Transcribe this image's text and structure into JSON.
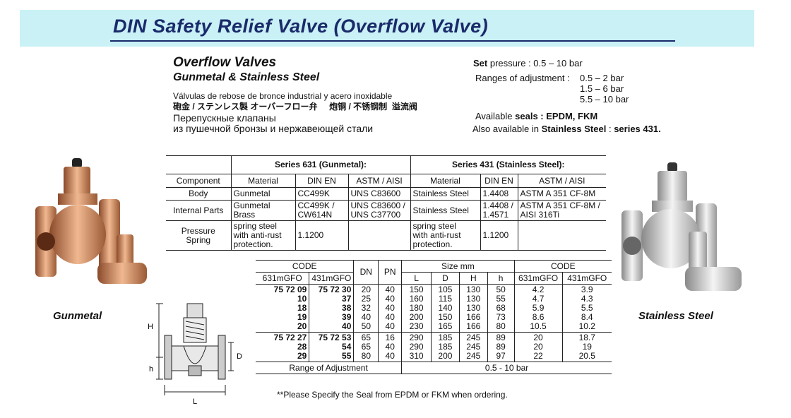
{
  "banner": {
    "title": "DIN  Safety Relief Valve  (Overflow Valve)",
    "bg_color": "#c9f1f6",
    "title_color": "#1a2a6a"
  },
  "heading": {
    "title": "Overflow Valves",
    "subtitle": "Gunmetal & Stainless Steel",
    "spanish": "Válvulas de rebose de bronce industrial y acero inoxidable",
    "japanese_chinese": "砲金 / ステンレス製 オーバーフロー弁     炮铜 / 不锈钢制  溢流阀",
    "russian_1": "Перепускные клапаны",
    "russian_2": "из пушечной бронзы и нержавеющей стали"
  },
  "specs": {
    "set_pressure_label": "Set",
    "set_pressure_text": " pressure : 0.5 – 10 bar",
    "ranges_label": "Ranges of adjustment : ",
    "ranges": [
      "0.5 – 2 bar",
      "1.5 – 6 bar",
      "5.5 – 10 bar"
    ],
    "seals_prefix": "Available ",
    "seals_bold": "seals : EPDM, FKM",
    "also_prefix": "Also available in ",
    "also_bold": "Stainless Steel",
    "also_mid": " : ",
    "also_series": "series 431."
  },
  "materials_table": {
    "series_631": "Series 631 (Gunmetal):",
    "series_431": "Series 431 (Stainless Steel):",
    "headers": [
      "Component",
      "Material",
      "DIN EN",
      "ASTM / AISI",
      "Material",
      "DIN EN",
      "ASTM / AISI"
    ],
    "rows": [
      [
        "Body",
        "Gunmetal",
        "CC499K",
        "UNS C83600",
        "Stainless Steel",
        "1.4408",
        "ASTM A 351 CF-8M"
      ],
      [
        "Internal Parts",
        "Gunmetal\nBrass",
        "CC499K /\nCW614N",
        "UNS C83600 /\nUNS C37700",
        "Stainless Steel",
        "1.4408 /\n1.4571",
        "ASTM A 351 CF-8M /\nAISI 316Ti"
      ],
      [
        "Pressure\nSpring",
        "spring steel\nwith anti-rust\nprotection.",
        "1.1200",
        "",
        "spring steel\nwith anti-rust\nprotection.",
        "1.1200",
        ""
      ]
    ]
  },
  "size_table": {
    "code_label": "CODE",
    "code_631": "631mGFO",
    "code_431": "431mGFO",
    "dn": "DN",
    "pn": "PN",
    "size_label": "Size mm",
    "size_cols": [
      "L",
      "D",
      "H",
      "h"
    ],
    "code2_label": "CODE",
    "groups": [
      {
        "c631": "75 72 09\n10\n18\n19\n20",
        "c431": "75 72 30\n37\n38\n39\n40",
        "dn": "20\n25\n32\n40\n50",
        "pn": "40\n40\n40\n40\n40",
        "L": "150\n160\n180\n200\n230",
        "D": "105\n115\n140\n150\n165",
        "H": "130\n130\n130\n166\n166",
        "h": "50\n55\n68\n73\n80",
        "w631": "4.2\n4.7\n5.9\n8.6\n10.5",
        "w431": "3.9\n4.3\n5.5\n8.4\n10.2"
      },
      {
        "c631": "75 72 27\n28\n29",
        "c431": "75 72 53\n54\n55",
        "dn": "65\n65\n80",
        "pn": "16\n40\n40",
        "L": "290\n290\n310",
        "D": "185\n185\n200",
        "H": "245\n245\n245",
        "h": "89\n89\n97",
        "w631": "20\n20\n22",
        "w431": "18.7\n19\n20.5"
      }
    ],
    "range_label": "Range of Adjustment",
    "range_value": "0.5 - 10 bar"
  },
  "note": "**Please Specify the Seal from EPDM or FKM when ordering.",
  "captions": {
    "gunmetal": "Gunmetal",
    "stainless": "Stainless Steel"
  },
  "diagram_labels": {
    "H": "H",
    "h": "h",
    "D": "D",
    "L": "L"
  },
  "colors": {
    "gunmetal": "#c8865a",
    "stainless": "#c9c9c9"
  }
}
